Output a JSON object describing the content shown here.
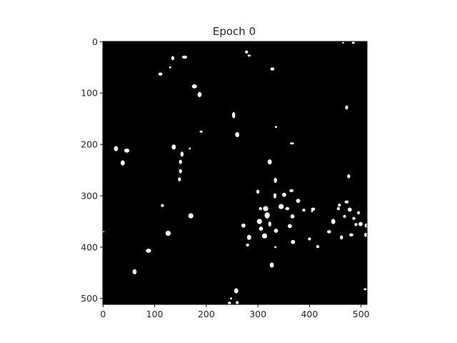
{
  "chart_data": {
    "type": "heatmap",
    "title": "Epoch 0",
    "xlabel": "",
    "ylabel": "",
    "image_size": [
      512,
      512
    ],
    "colormap": [
      "#000000",
      "#ffffff"
    ],
    "xlim": [
      0,
      511
    ],
    "ylim": [
      511,
      0
    ],
    "x_ticks": [
      0,
      100,
      200,
      300,
      400,
      500
    ],
    "y_ticks": [
      0,
      100,
      200,
      300,
      400,
      500
    ],
    "grid": false,
    "blobs": [
      [
        135,
        32,
        3,
        4
      ],
      [
        158,
        30,
        5,
        3
      ],
      [
        130,
        50,
        2,
        2
      ],
      [
        111,
        63,
        4,
        3
      ],
      [
        278,
        20,
        3,
        3
      ],
      [
        283,
        27,
        3,
        2
      ],
      [
        328,
        53,
        4,
        3
      ],
      [
        177,
        87,
        5,
        4
      ],
      [
        187,
        103,
        4,
        5
      ],
      [
        253,
        143,
        3,
        6
      ],
      [
        260,
        181,
        4,
        5
      ],
      [
        335,
        166,
        2,
        2
      ],
      [
        472,
        128,
        3,
        4
      ],
      [
        190,
        175,
        3,
        2
      ],
      [
        25,
        208,
        4,
        5
      ],
      [
        46,
        212,
        5,
        4
      ],
      [
        137,
        205,
        4,
        5
      ],
      [
        153,
        219,
        3,
        5
      ],
      [
        168,
        208,
        2,
        2
      ],
      [
        38,
        236,
        4,
        5
      ],
      [
        150,
        234,
        3,
        4
      ],
      [
        150,
        252,
        3,
        4
      ],
      [
        148,
        268,
        3,
        4
      ],
      [
        366,
        198,
        4,
        2
      ],
      [
        323,
        234,
        4,
        5
      ],
      [
        476,
        262,
        3,
        4
      ],
      [
        300,
        292,
        3,
        4
      ],
      [
        334,
        270,
        3,
        5
      ],
      [
        333,
        300,
        3,
        5
      ],
      [
        351,
        298,
        4,
        4
      ],
      [
        365,
        290,
        4,
        3
      ],
      [
        378,
        310,
        4,
        4
      ],
      [
        115,
        319,
        3,
        3
      ],
      [
        170,
        339,
        5,
        5
      ],
      [
        305,
        325,
        3,
        3
      ],
      [
        315,
        325,
        5,
        5
      ],
      [
        303,
        350,
        5,
        5
      ],
      [
        318,
        338,
        5,
        6
      ],
      [
        323,
        355,
        3,
        5
      ],
      [
        345,
        321,
        5,
        5
      ],
      [
        357,
        325,
        4,
        3
      ],
      [
        367,
        340,
        4,
        4
      ],
      [
        362,
        359,
        4,
        4
      ],
      [
        389,
        328,
        3,
        3
      ],
      [
        407,
        326,
        4,
        3
      ],
      [
        446,
        350,
        4,
        5
      ],
      [
        458,
        318,
        3,
        3
      ],
      [
        472,
        312,
        4,
        3
      ],
      [
        478,
        327,
        4,
        4
      ],
      [
        468,
        340,
        3,
        3
      ],
      [
        495,
        333,
        3,
        3
      ],
      [
        499,
        355,
        4,
        4
      ],
      [
        490,
        356,
        3,
        3
      ],
      [
        510,
        358,
        3,
        4
      ],
      [
        509,
        376,
        3,
        4
      ],
      [
        126,
        373,
        5,
        5
      ],
      [
        272,
        358,
        4,
        4
      ],
      [
        283,
        381,
        4,
        5
      ],
      [
        306,
        364,
        4,
        4
      ],
      [
        313,
        378,
        5,
        5
      ],
      [
        335,
        368,
        4,
        4
      ],
      [
        368,
        390,
        4,
        4
      ],
      [
        400,
        384,
        3,
        3
      ],
      [
        416,
        399,
        3,
        3
      ],
      [
        438,
        370,
        4,
        3
      ],
      [
        481,
        376,
        4,
        3
      ],
      [
        462,
        381,
        3,
        4
      ],
      [
        405,
        330,
        2,
        2
      ],
      [
        280,
        396,
        3,
        3
      ],
      [
        334,
        400,
        2,
        2
      ],
      [
        88,
        407,
        5,
        4
      ],
      [
        327,
        435,
        4,
        5
      ],
      [
        61,
        448,
        4,
        5
      ],
      [
        258,
        485,
        4,
        5
      ],
      [
        260,
        508,
        3,
        3
      ],
      [
        245,
        509,
        3,
        3
      ],
      [
        248,
        500,
        2,
        2
      ],
      [
        465,
        2,
        2,
        1
      ],
      [
        485,
        2,
        3,
        2
      ],
      [
        508,
        482,
        3,
        2
      ],
      [
        1,
        370,
        1,
        1
      ],
      [
        456,
        325,
        3,
        3
      ],
      [
        486,
        344,
        3,
        3
      ]
    ]
  }
}
